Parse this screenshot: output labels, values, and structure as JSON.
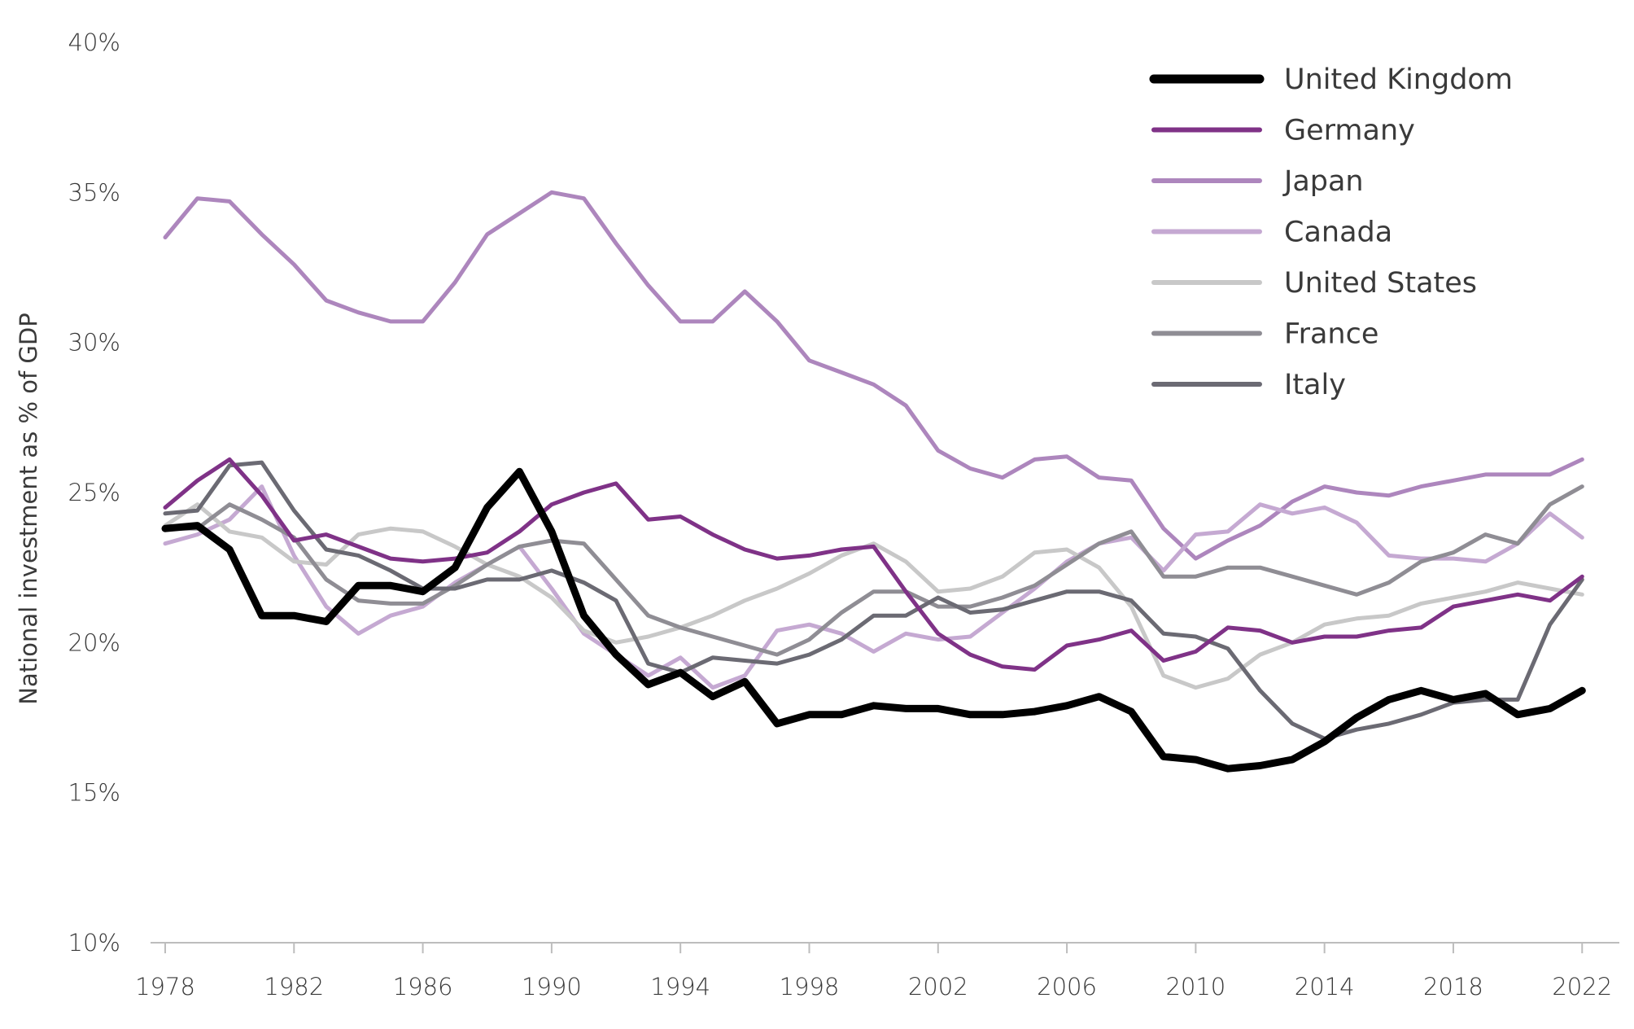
{
  "chart_data": {
    "type": "line",
    "title": "",
    "xlabel": "",
    "ylabel": "National investment as % of GDP",
    "x": [
      1978,
      1979,
      1980,
      1981,
      1982,
      1983,
      1984,
      1985,
      1986,
      1987,
      1988,
      1989,
      1990,
      1991,
      1992,
      1993,
      1994,
      1995,
      1996,
      1997,
      1998,
      1999,
      2000,
      2001,
      2002,
      2003,
      2004,
      2005,
      2006,
      2007,
      2008,
      2009,
      2010,
      2011,
      2012,
      2013,
      2014,
      2015,
      2016,
      2017,
      2018,
      2019,
      2020,
      2021,
      2022
    ],
    "xlim": [
      1978,
      2022.6
    ],
    "ylim": [
      10,
      40
    ],
    "x_ticks": [
      "1978",
      "1982",
      "1986",
      "1990",
      "1994",
      "1998",
      "2002",
      "2006",
      "2010",
      "2014",
      "2018",
      "2022"
    ],
    "y_ticks": [
      "10%",
      "15%",
      "20%",
      "25%",
      "30%",
      "35%",
      "40%"
    ],
    "legend_position": "top-right",
    "series": [
      {
        "name": "Japan",
        "color": "#ad86bd",
        "width": 5,
        "values": [
          33.5,
          34.8,
          34.7,
          33.6,
          32.6,
          31.4,
          31.0,
          30.7,
          30.7,
          32.0,
          33.6,
          34.3,
          35.0,
          34.8,
          33.3,
          31.9,
          30.7,
          30.7,
          31.7,
          30.7,
          29.4,
          29.0,
          28.6,
          27.9,
          26.4,
          25.8,
          25.5,
          26.1,
          26.2,
          25.5,
          25.4,
          23.8,
          22.8,
          23.4,
          23.9,
          24.7,
          25.2,
          25.0,
          24.9,
          25.2,
          25.4,
          25.6,
          25.6,
          25.6,
          26.1
        ]
      },
      {
        "name": "Canada",
        "color": "#c5a9d2",
        "width": 5,
        "values": [
          23.3,
          23.6,
          24.1,
          25.2,
          22.9,
          21.2,
          20.3,
          20.9,
          21.2,
          22.0,
          22.6,
          23.2,
          21.8,
          20.3,
          19.6,
          18.9,
          19.5,
          18.5,
          18.9,
          20.4,
          20.6,
          20.3,
          19.7,
          20.3,
          20.1,
          20.2,
          21.0,
          21.8,
          22.7,
          23.3,
          23.5,
          22.4,
          23.6,
          23.7,
          24.6,
          24.3,
          24.5,
          24.0,
          22.9,
          22.8,
          22.8,
          22.7,
          23.3,
          24.3,
          23.5
        ]
      },
      {
        "name": "United States",
        "color": "#c8c8c8",
        "width": 5,
        "values": [
          23.9,
          24.6,
          23.7,
          23.5,
          22.7,
          22.6,
          23.6,
          23.8,
          23.7,
          23.2,
          22.6,
          22.2,
          21.5,
          20.4,
          20.0,
          20.2,
          20.5,
          20.9,
          21.4,
          21.8,
          22.3,
          22.9,
          23.3,
          22.7,
          21.7,
          21.8,
          22.2,
          23.0,
          23.1,
          22.5,
          21.2,
          18.9,
          18.5,
          18.8,
          19.6,
          20.0,
          20.6,
          20.8,
          20.9,
          21.3,
          21.5,
          21.7,
          22.0,
          21.8,
          21.6
        ]
      },
      {
        "name": "France",
        "color": "#8f8d94",
        "width": 5,
        "values": [
          23.8,
          23.8,
          24.6,
          24.1,
          23.5,
          22.1,
          21.4,
          21.3,
          21.3,
          21.9,
          22.6,
          23.2,
          23.4,
          23.3,
          22.1,
          20.9,
          20.5,
          20.2,
          19.9,
          19.6,
          20.1,
          21.0,
          21.7,
          21.7,
          21.2,
          21.2,
          21.5,
          21.9,
          22.6,
          23.3,
          23.7,
          22.2,
          22.2,
          22.5,
          22.5,
          22.2,
          21.9,
          21.6,
          22.0,
          22.7,
          23.0,
          23.6,
          23.3,
          24.6,
          25.2
        ]
      },
      {
        "name": "Italy",
        "color": "#6b6a73",
        "width": 5,
        "values": [
          24.3,
          24.4,
          25.9,
          26.0,
          24.4,
          23.1,
          22.9,
          22.4,
          21.8,
          21.8,
          22.1,
          22.1,
          22.4,
          22.0,
          21.4,
          19.3,
          19.0,
          19.5,
          19.4,
          19.3,
          19.6,
          20.1,
          20.9,
          20.9,
          21.5,
          21.0,
          21.1,
          21.4,
          21.7,
          21.7,
          21.4,
          20.3,
          20.2,
          19.8,
          18.4,
          17.3,
          16.8,
          17.1,
          17.3,
          17.6,
          18.0,
          18.1,
          18.1,
          20.6,
          22.1
        ]
      },
      {
        "name": "Germany",
        "color": "#7f3287",
        "width": 5,
        "values": [
          24.5,
          25.4,
          26.1,
          24.9,
          23.4,
          23.6,
          23.2,
          22.8,
          22.7,
          22.8,
          23.0,
          23.7,
          24.6,
          25.0,
          25.3,
          24.1,
          24.2,
          23.6,
          23.1,
          22.8,
          22.9,
          23.1,
          23.2,
          21.7,
          20.3,
          19.6,
          19.2,
          19.1,
          19.9,
          20.1,
          20.4,
          19.4,
          19.7,
          20.5,
          20.4,
          20.0,
          20.2,
          20.2,
          20.4,
          20.5,
          21.2,
          21.4,
          21.6,
          21.4,
          22.2
        ]
      },
      {
        "name": "United Kingdom",
        "color": "#000000",
        "width": 9,
        "values": [
          23.8,
          23.9,
          23.1,
          20.9,
          20.9,
          20.7,
          21.9,
          21.9,
          21.7,
          22.5,
          24.5,
          25.7,
          23.7,
          20.9,
          19.6,
          18.6,
          19.0,
          18.2,
          18.7,
          17.3,
          17.6,
          17.6,
          17.9,
          17.8,
          17.8,
          17.6,
          17.6,
          17.7,
          17.9,
          18.2,
          17.7,
          16.2,
          16.1,
          15.8,
          15.9,
          16.1,
          16.7,
          17.5,
          18.1,
          18.4,
          18.1,
          18.3,
          17.6,
          17.8,
          18.4
        ]
      }
    ],
    "legend_order": [
      "United Kingdom",
      "Germany",
      "Japan",
      "Canada",
      "United States",
      "France",
      "Italy"
    ]
  }
}
